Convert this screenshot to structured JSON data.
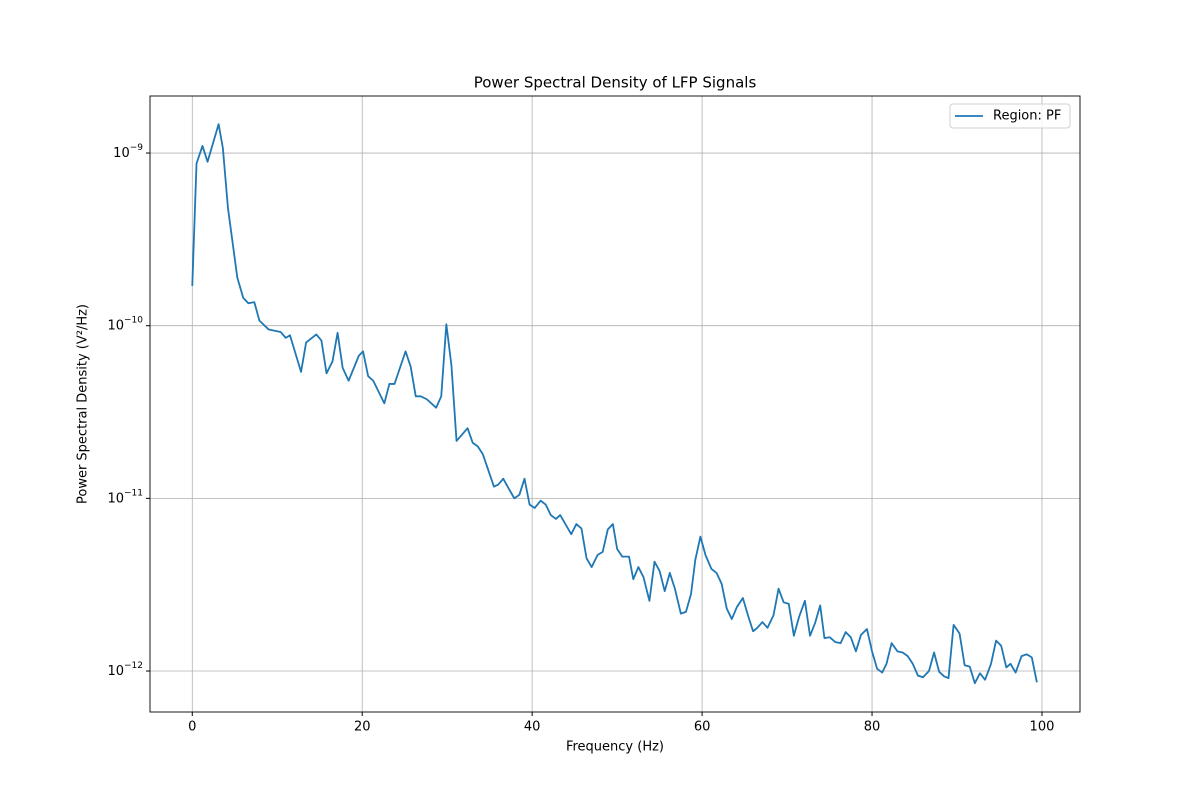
{
  "chart_data": {
    "type": "line",
    "title": "Power Spectral Density of LFP Signals",
    "xlabel": "Frequency (Hz)",
    "ylabel": "Power Spectral Density (V²/Hz)",
    "x": [
      0,
      0.5,
      1.2,
      1.8,
      3.1,
      3.6,
      4.2,
      5.3,
      6.0,
      6.6,
      7.3,
      7.9,
      9,
      10.4,
      11,
      11.5,
      12.8,
      13.4,
      14.6,
      15.2,
      15.8,
      16.5,
      17.1,
      17.7,
      18.4,
      19.6,
      20.1,
      20.7,
      21.3,
      22.6,
      23.2,
      23.8,
      25.1,
      25.7,
      26.3,
      26.9,
      27.6,
      28.7,
      29.3,
      29.9,
      30.5,
      31.1,
      32.4,
      33,
      33.6,
      34.2,
      35.5,
      36,
      36.6,
      37.2,
      37.9,
      38.5,
      39.1,
      39.7,
      40.3,
      41,
      41.6,
      42.2,
      42.8,
      43.3,
      44.6,
      45.2,
      45.8,
      46.4,
      47,
      47.7,
      48.3,
      48.9,
      49.5,
      50,
      50.6,
      51.4,
      51.9,
      52.5,
      53.1,
      53.8,
      54.4,
      55,
      55.6,
      56.2,
      56.8,
      57.5,
      58.1,
      58.7,
      59.2,
      59.8,
      60.4,
      61.1,
      61.7,
      62.3,
      62.9,
      63.5,
      64.1,
      64.8,
      65.4,
      66,
      66.5,
      67.1,
      67.7,
      68.4,
      69,
      69.6,
      70.2,
      70.8,
      71.4,
      72.1,
      72.7,
      73.3,
      73.9,
      74.4,
      75,
      75.7,
      76.3,
      76.9,
      77.5,
      78.1,
      78.7,
      79.4,
      80,
      80.6,
      81.2,
      81.7,
      82.3,
      83,
      83.6,
      84.2,
      84.8,
      85.4,
      86,
      86.7,
      87.3,
      87.9,
      88.5,
      89,
      89.6,
      90.3,
      90.9,
      91.5,
      92.1,
      92.7,
      93.3,
      94,
      94.6,
      95.2,
      95.8,
      96.3,
      96.9,
      97.6,
      98.2,
      98.8,
      99.4
    ],
    "series": [
      {
        "name": "Region: PF",
        "color": "#1f77b4",
        "values": [
          1.7e-10,
          8.7e-10,
          1.1e-09,
          8.9e-10,
          1.47e-09,
          1.07e-09,
          4.8e-10,
          1.9e-10,
          1.45e-10,
          1.35e-10,
          1.37e-10,
          1.07e-10,
          9.5e-11,
          9.2e-11,
          8.5e-11,
          8.8e-11,
          5.4e-11,
          8e-11,
          8.9e-11,
          8.2e-11,
          5.3e-11,
          6.2e-11,
          9.1e-11,
          5.7e-11,
          4.8e-11,
          6.7e-11,
          7.1e-11,
          5.1e-11,
          4.8e-11,
          3.55e-11,
          4.6e-11,
          4.6e-11,
          7.1e-11,
          5.8e-11,
          3.9e-11,
          3.9e-11,
          3.75e-11,
          3.35e-11,
          3.9e-11,
          1.02e-10,
          5.9e-11,
          2.15e-11,
          2.55e-11,
          2.1e-11,
          2e-11,
          1.8e-11,
          1.17e-11,
          1.2e-11,
          1.3e-11,
          1.15e-11,
          1e-11,
          1.05e-11,
          1.3e-11,
          9.2e-12,
          8.8e-12,
          9.7e-12,
          9.2e-12,
          8e-12,
          7.6e-12,
          8e-12,
          6.2e-12,
          7.1e-12,
          6.7e-12,
          4.5e-12,
          4e-12,
          4.7e-12,
          4.9e-12,
          6.6e-12,
          7.1e-12,
          5.1e-12,
          4.6e-12,
          4.6e-12,
          3.4e-12,
          4e-12,
          3.5e-12,
          2.55e-12,
          4.3e-12,
          3.8e-12,
          2.9e-12,
          3.7e-12,
          3e-12,
          2.15e-12,
          2.2e-12,
          2.8e-12,
          4.4e-12,
          6e-12,
          4.7e-12,
          3.9e-12,
          3.7e-12,
          3.2e-12,
          2.3e-12,
          2e-12,
          2.35e-12,
          2.65e-12,
          2.1e-12,
          1.7e-12,
          1.78e-12,
          1.92e-12,
          1.78e-12,
          2.1e-12,
          3e-12,
          2.5e-12,
          2.45e-12,
          1.6e-12,
          2.05e-12,
          2.55e-12,
          1.6e-12,
          1.9e-12,
          2.4e-12,
          1.55e-12,
          1.57e-12,
          1.47e-12,
          1.45e-12,
          1.68e-12,
          1.57e-12,
          1.3e-12,
          1.62e-12,
          1.75e-12,
          1.3e-12,
          1.03e-12,
          9.8e-13,
          1.1e-12,
          1.45e-12,
          1.3e-12,
          1.28e-12,
          1.22e-12,
          1.1e-12,
          9.4e-13,
          9.2e-13,
          1e-12,
          1.28e-12,
          9.9e-13,
          9.3e-13,
          9.1e-13,
          1.85e-12,
          1.65e-12,
          1.08e-12,
          1.06e-12,
          8.5e-13,
          9.7e-13,
          8.9e-13,
          1.1e-12,
          1.5e-12,
          1.4e-12,
          1.05e-12,
          1.1e-12,
          9.8e-13,
          1.22e-12,
          1.25e-12,
          1.2e-12,
          8.6e-13
        ]
      }
    ],
    "xlim": [
      -4.975,
      104.475
    ],
    "xticks": [
      0,
      20,
      40,
      60,
      80,
      100
    ],
    "ylim": [
      2.14e-09,
      5.79e-13
    ],
    "ylog": true,
    "yticks": [
      {
        "value": 1e-09,
        "label": "10−9"
      },
      {
        "value": 1e-10,
        "label": "10−10"
      },
      {
        "value": 1e-11,
        "label": "10−11"
      },
      {
        "value": 1e-12,
        "label": "10−12"
      }
    ],
    "grid": true,
    "legend": "upper right"
  }
}
